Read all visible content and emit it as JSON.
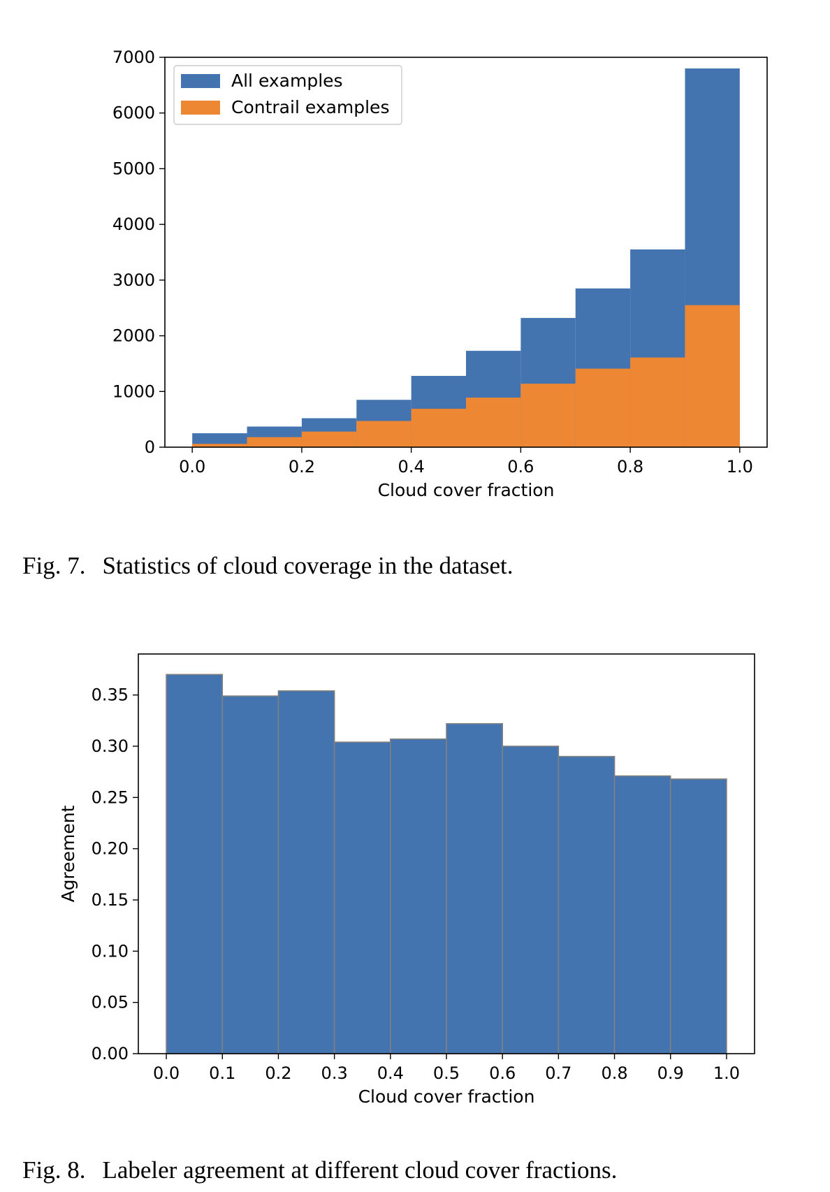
{
  "figures": [
    {
      "caption_label": "Fig. 7.",
      "caption_text": "Statistics of cloud coverage in the dataset."
    },
    {
      "caption_label": "Fig. 8.",
      "caption_text": "Labeler agreement at different cloud cover fractions."
    }
  ],
  "colors": {
    "blue": "#4374b0",
    "orange": "#ee8733",
    "edge": "#808080"
  },
  "chart_data": [
    {
      "type": "bar",
      "subtype": "histogram",
      "xlabel": "Cloud cover fraction",
      "ylabel": "",
      "bin_edges": [
        0.0,
        0.1,
        0.2,
        0.3,
        0.4,
        0.5,
        0.6,
        0.7,
        0.8,
        0.9,
        1.0
      ],
      "series": [
        {
          "name": "All examples",
          "color": "#4374b0",
          "values": [
            250,
            370,
            520,
            850,
            1280,
            1730,
            2320,
            2850,
            3550,
            6800
          ]
        },
        {
          "name": "Contrail examples",
          "color": "#ee8733",
          "values": [
            60,
            180,
            280,
            470,
            690,
            890,
            1140,
            1410,
            1610,
            2550
          ]
        }
      ],
      "xlim": [
        -0.05,
        1.05
      ],
      "ylim": [
        0,
        7000
      ],
      "xticks": [
        "0.0",
        "0.2",
        "0.4",
        "0.6",
        "0.8",
        "1.0"
      ],
      "yticks": [
        "0",
        "1000",
        "2000",
        "3000",
        "4000",
        "5000",
        "6000",
        "7000"
      ],
      "legend": "top-left",
      "grid": false
    },
    {
      "type": "bar",
      "subtype": "histogram",
      "xlabel": "Cloud cover fraction",
      "ylabel": "Agreement",
      "bin_edges": [
        0.0,
        0.1,
        0.2,
        0.3,
        0.4,
        0.5,
        0.6,
        0.7,
        0.8,
        0.9,
        1.0
      ],
      "values": [
        0.37,
        0.349,
        0.354,
        0.304,
        0.307,
        0.322,
        0.3,
        0.29,
        0.271,
        0.268
      ],
      "color": "#4374b0",
      "edgecolor": "#808080",
      "xlim": [
        -0.05,
        1.05
      ],
      "ylim": [
        0,
        0.39
      ],
      "xticks": [
        "0.0",
        "0.1",
        "0.2",
        "0.3",
        "0.4",
        "0.5",
        "0.6",
        "0.7",
        "0.8",
        "0.9",
        "1.0"
      ],
      "yticks": [
        "0.00",
        "0.05",
        "0.10",
        "0.15",
        "0.20",
        "0.25",
        "0.30",
        "0.35"
      ],
      "grid": false
    }
  ]
}
